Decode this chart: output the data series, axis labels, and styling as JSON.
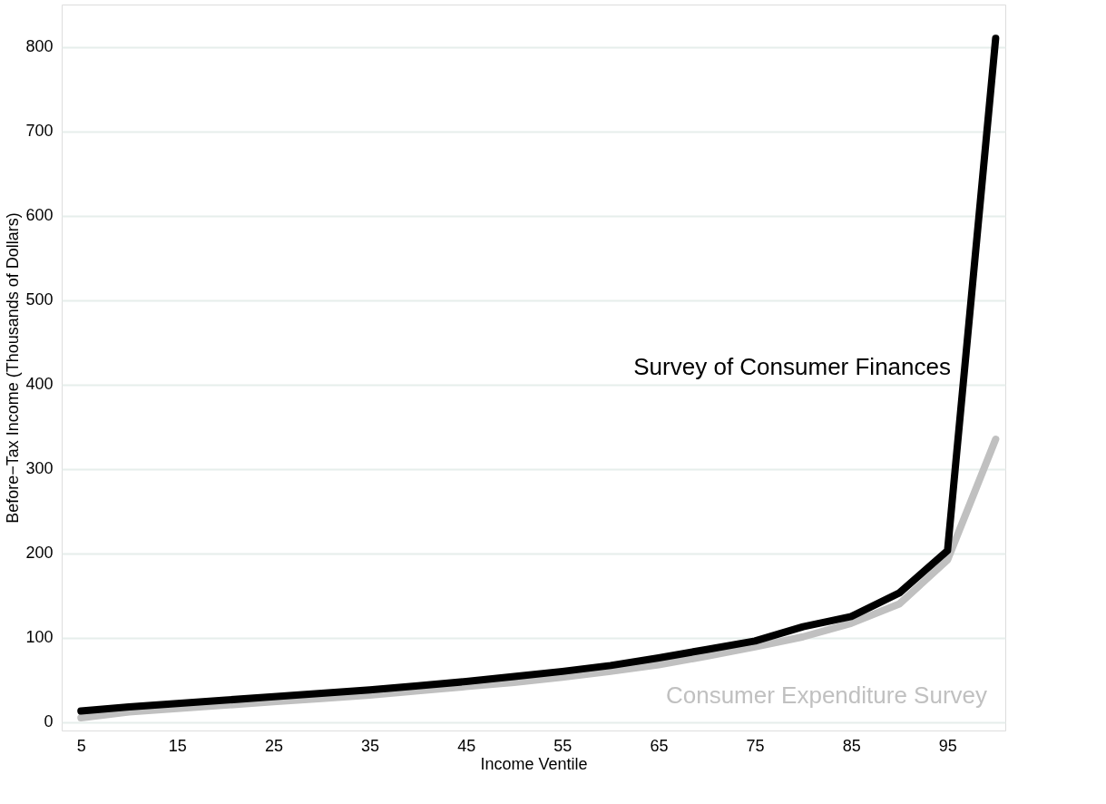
{
  "chart_data": {
    "type": "line",
    "xlabel": "Income Ventile",
    "ylabel": "Before−Tax Income (Thousands of Dollars)",
    "x": [
      5,
      10,
      15,
      20,
      25,
      30,
      35,
      40,
      45,
      50,
      55,
      60,
      65,
      70,
      75,
      80,
      85,
      90,
      95,
      100
    ],
    "series": [
      {
        "name": "Consumer Expenditure Survey",
        "color": "#c0c0c0",
        "values": [
          5,
          12,
          16,
          20,
          24,
          28,
          32,
          37,
          42,
          47,
          53,
          60,
          68,
          78,
          89,
          101,
          117,
          140,
          192,
          335
        ]
      },
      {
        "name": "Survey of Consumer Finances",
        "color": "#000000",
        "values": [
          13,
          18,
          22,
          26,
          30,
          34,
          38,
          43,
          48,
          54,
          60,
          67,
          76,
          86,
          96,
          113,
          125,
          153,
          203,
          810
        ]
      }
    ],
    "xlim": [
      3,
      101
    ],
    "xticks": [
      5,
      15,
      25,
      35,
      45,
      55,
      65,
      75,
      85,
      95
    ],
    "ylim": [
      -10,
      850
    ],
    "yticks": [
      0,
      100,
      200,
      300,
      400,
      500,
      600,
      700,
      800
    ],
    "grid": "y",
    "legend": false,
    "marker": "none",
    "line_style": "solid"
  }
}
